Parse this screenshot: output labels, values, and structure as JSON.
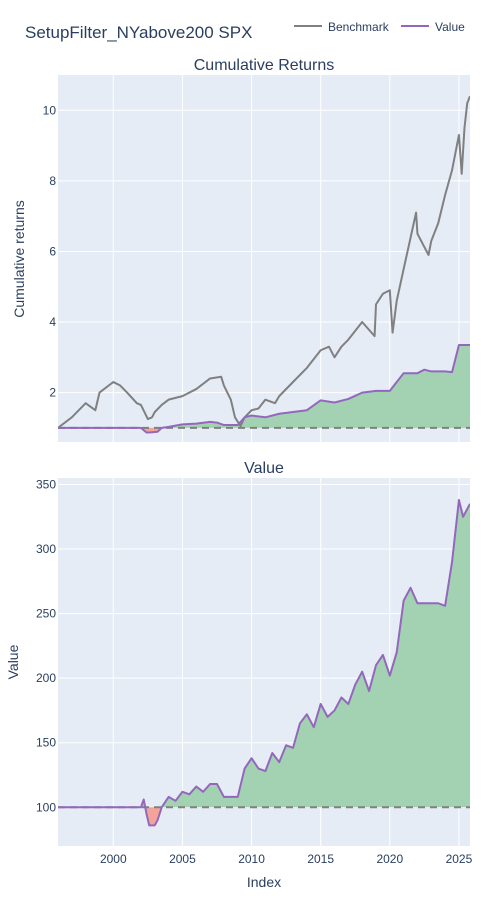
{
  "title": "SetupFilter_NYabove200 SPX",
  "legend": {
    "placement": "top-right",
    "items": [
      {
        "label": "Benchmark",
        "color": "#808080"
      },
      {
        "label": "Value",
        "color": "#9467bd"
      }
    ]
  },
  "colors": {
    "plot_bg": "#e5ecf6",
    "grid": "#ffffff",
    "benchmark": "#808080",
    "value": "#9467bd",
    "gain_fill": "#a2d2b2",
    "loss_fill": "#f4a39a",
    "baseline": "#808080"
  },
  "chart_data": [
    {
      "type": "line",
      "title": "Cumulative Returns",
      "ylabel": "Cumulative returns",
      "xlabel": "",
      "xlim": [
        1996.0,
        2025.8
      ],
      "ylim": [
        0.6,
        11.0
      ],
      "yticks": [
        2,
        4,
        6,
        8,
        10
      ],
      "xticks": [
        2000,
        2005,
        2010,
        2015,
        2020,
        2025
      ],
      "show_xtick_labels": false,
      "grid": true,
      "baseline": 1,
      "series": [
        {
          "name": "Benchmark",
          "x": [
            1996.0,
            1997.0,
            1998.0,
            1998.7,
            1999.0,
            2000.0,
            2000.5,
            2001.0,
            2001.7,
            2002.0,
            2002.5,
            2002.8,
            2003.0,
            2003.5,
            2004.0,
            2005.0,
            2006.0,
            2007.0,
            2007.8,
            2008.0,
            2008.5,
            2008.8,
            2009.2,
            2009.5,
            2010.0,
            2010.5,
            2011.0,
            2011.7,
            2012.0,
            2013.0,
            2014.0,
            2015.0,
            2015.6,
            2016.0,
            2016.5,
            2017.0,
            2018.0,
            2018.9,
            2019.0,
            2019.5,
            2020.0,
            2020.2,
            2020.5,
            2021.0,
            2021.9,
            2022.0,
            2022.8,
            2023.0,
            2023.5,
            2024.0,
            2024.5,
            2025.0,
            2025.2,
            2025.4,
            2025.6,
            2025.8
          ],
          "values": [
            1.0,
            1.3,
            1.7,
            1.5,
            2.0,
            2.3,
            2.2,
            2.0,
            1.7,
            1.65,
            1.25,
            1.3,
            1.45,
            1.65,
            1.8,
            1.9,
            2.1,
            2.4,
            2.45,
            2.2,
            1.8,
            1.3,
            1.05,
            1.3,
            1.5,
            1.55,
            1.8,
            1.7,
            1.9,
            2.3,
            2.7,
            3.2,
            3.3,
            3.0,
            3.3,
            3.5,
            4.0,
            3.6,
            4.5,
            4.8,
            4.9,
            3.7,
            4.6,
            5.5,
            7.1,
            6.5,
            5.9,
            6.3,
            6.8,
            7.6,
            8.3,
            9.3,
            8.2,
            9.5,
            10.2,
            10.4
          ]
        },
        {
          "name": "Value",
          "x": [
            1996.0,
            2002.0,
            2002.4,
            2002.6,
            2003.2,
            2003.5,
            2004.0,
            2005.0,
            2006.0,
            2007.0,
            2007.5,
            2008.0,
            2009.0,
            2009.5,
            2010.0,
            2011.0,
            2012.0,
            2013.0,
            2014.0,
            2015.0,
            2016.0,
            2017.0,
            2018.0,
            2019.0,
            2020.0,
            2021.0,
            2022.0,
            2022.5,
            2023.0,
            2024.0,
            2024.5,
            2025.0,
            2025.8
          ],
          "values": [
            1.0,
            1.0,
            0.87,
            0.87,
            0.89,
            1.0,
            1.03,
            1.1,
            1.12,
            1.17,
            1.15,
            1.08,
            1.08,
            1.3,
            1.35,
            1.3,
            1.4,
            1.45,
            1.5,
            1.78,
            1.72,
            1.82,
            2.0,
            2.05,
            2.05,
            2.55,
            2.55,
            2.65,
            2.6,
            2.6,
            2.58,
            3.35,
            3.35
          ]
        }
      ]
    },
    {
      "type": "area",
      "title": "Value",
      "ylabel": "Value",
      "xlabel": "Index",
      "xlim": [
        1996.0,
        2025.8
      ],
      "ylim": [
        70,
        355
      ],
      "yticks": [
        100,
        150,
        200,
        250,
        300,
        350
      ],
      "xticks": [
        2000,
        2005,
        2010,
        2015,
        2020,
        2025
      ],
      "show_xtick_labels": true,
      "grid": true,
      "baseline": 100,
      "series": [
        {
          "name": "Value",
          "x": [
            1996.0,
            2002.0,
            2002.2,
            2002.4,
            2002.6,
            2003.0,
            2003.2,
            2003.5,
            2004.0,
            2004.5,
            2005.0,
            2005.5,
            2006.0,
            2006.5,
            2007.0,
            2007.5,
            2008.0,
            2009.0,
            2009.5,
            2010.0,
            2010.5,
            2011.0,
            2011.5,
            2012.0,
            2012.5,
            2013.0,
            2013.5,
            2014.0,
            2014.5,
            2015.0,
            2015.5,
            2016.0,
            2016.5,
            2017.0,
            2017.5,
            2018.0,
            2018.5,
            2019.0,
            2019.5,
            2020.0,
            2020.5,
            2021.0,
            2021.5,
            2022.0,
            2022.5,
            2023.0,
            2023.5,
            2024.0,
            2024.5,
            2025.0,
            2025.3,
            2025.8
          ],
          "values": [
            100,
            100,
            106,
            95,
            86,
            86,
            90,
            100,
            108,
            105,
            112,
            110,
            116,
            112,
            118,
            118,
            108,
            108,
            130,
            138,
            130,
            128,
            142,
            135,
            148,
            146,
            165,
            172,
            162,
            180,
            170,
            175,
            185,
            180,
            195,
            205,
            190,
            210,
            218,
            202,
            220,
            260,
            270,
            258,
            258,
            258,
            258,
            256,
            290,
            338,
            325,
            335
          ]
        }
      ]
    }
  ]
}
